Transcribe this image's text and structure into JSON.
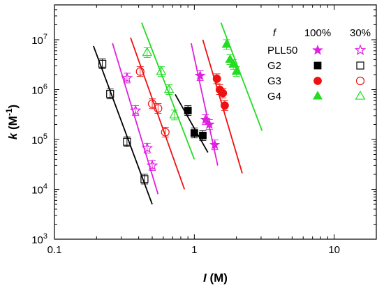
{
  "chart_data": {
    "type": "scatter",
    "x_scale": "log",
    "y_scale": "log",
    "xlim": [
      0.1,
      20
    ],
    "ylim": [
      1000,
      50000000
    ],
    "xlabel_parts": [
      {
        "text": "I",
        "italic": true
      },
      {
        "text": " (M)",
        "italic": false
      }
    ],
    "ylabel_parts": [
      {
        "text": "k",
        "italic": true
      },
      {
        "text": " (M",
        "italic": false
      },
      {
        "text": "-1",
        "italic": false,
        "sup": true
      },
      {
        "text": ")",
        "italic": false
      }
    ],
    "x_ticks": [
      {
        "value": 0.1,
        "label": "0.1"
      },
      {
        "value": 1,
        "label": "1"
      },
      {
        "value": 10,
        "label": "10"
      }
    ],
    "y_ticks": [
      {
        "value": 1000,
        "base": "10",
        "exp": "3"
      },
      {
        "value": 10000,
        "base": "10",
        "exp": "4"
      },
      {
        "value": 100000,
        "base": "10",
        "exp": "5"
      },
      {
        "value": 1000000,
        "base": "10",
        "exp": "6"
      },
      {
        "value": 10000000,
        "base": "10",
        "exp": "7"
      }
    ],
    "legend": {
      "position": "top-right",
      "header_label": "f",
      "col_full": "100%",
      "col_partial": "30%",
      "rows": [
        {
          "label": "PLL50",
          "color": "#e020e0",
          "shape": "star"
        },
        {
          "label": "G2",
          "color": "#000000",
          "shape": "square"
        },
        {
          "label": "G3",
          "color": "#ee1111",
          "shape": "circle"
        },
        {
          "label": "G4",
          "color": "#22dd22",
          "shape": "triangle"
        }
      ]
    },
    "series": [
      {
        "label": "PLL50",
        "f": "100%",
        "filled": true,
        "color": "#e020e0",
        "shape": "star",
        "points": [
          [
            1.1,
            1900000
          ],
          [
            1.2,
            250000
          ],
          [
            1.28,
            200000
          ],
          [
            1.4,
            78000
          ]
        ],
        "fit": [
          [
            0.95,
            8500000
          ],
          [
            1.47,
            30000
          ]
        ]
      },
      {
        "label": "PLL50",
        "f": "30%",
        "filled": false,
        "color": "#e020e0",
        "shape": "star",
        "points": [
          [
            0.33,
            1700000
          ],
          [
            0.38,
            380000
          ],
          [
            0.46,
            67000
          ],
          [
            0.5,
            30000
          ]
        ],
        "fit": [
          [
            0.26,
            8500000
          ],
          [
            0.55,
            8000
          ]
        ]
      },
      {
        "label": "G2",
        "f": "100%",
        "filled": true,
        "color": "#000000",
        "shape": "square",
        "points": [
          [
            0.9,
            380000
          ],
          [
            1.0,
            135000
          ],
          [
            1.15,
            120000
          ]
        ],
        "fit": [
          [
            0.73,
            800000
          ],
          [
            1.25,
            55000
          ]
        ]
      },
      {
        "label": "G2",
        "f": "30%",
        "filled": false,
        "color": "#000000",
        "shape": "square",
        "points": [
          [
            0.22,
            3300000
          ],
          [
            0.25,
            820000
          ],
          [
            0.33,
            90000
          ],
          [
            0.44,
            16000
          ]
        ],
        "fit": [
          [
            0.19,
            7500000
          ],
          [
            0.5,
            5000
          ]
        ]
      },
      {
        "label": "G3",
        "f": "100%",
        "filled": true,
        "color": "#ee1111",
        "shape": "circle",
        "points": [
          [
            1.45,
            1650000
          ],
          [
            1.52,
            1000000
          ],
          [
            1.6,
            850000
          ],
          [
            1.65,
            480000
          ]
        ],
        "fit": [
          [
            1.15,
            10000000
          ],
          [
            2.2,
            21000
          ]
        ]
      },
      {
        "label": "G3",
        "f": "30%",
        "filled": false,
        "color": "#ee1111",
        "shape": "circle",
        "points": [
          [
            0.41,
            2300000
          ],
          [
            0.5,
            520000
          ],
          [
            0.55,
            420000
          ],
          [
            0.62,
            140000
          ]
        ],
        "fit": [
          [
            0.35,
            11000000
          ],
          [
            0.85,
            10000
          ]
        ]
      },
      {
        "label": "G4",
        "f": "100%",
        "filled": true,
        "color": "#22dd22",
        "shape": "triangle",
        "points": [
          [
            1.7,
            8000000
          ],
          [
            1.8,
            4000000
          ],
          [
            1.9,
            3200000
          ],
          [
            2.0,
            2300000
          ]
        ],
        "fit": [
          [
            1.55,
            22000000
          ],
          [
            3.05,
            150000
          ]
        ]
      },
      {
        "label": "G4",
        "f": "30%",
        "filled": false,
        "color": "#22dd22",
        "shape": "triangle",
        "points": [
          [
            0.46,
            5500000
          ],
          [
            0.58,
            2300000
          ],
          [
            0.66,
            1000000
          ],
          [
            0.72,
            310000
          ]
        ],
        "fit": [
          [
            0.42,
            22000000
          ],
          [
            1.0,
            40000
          ]
        ]
      }
    ]
  }
}
